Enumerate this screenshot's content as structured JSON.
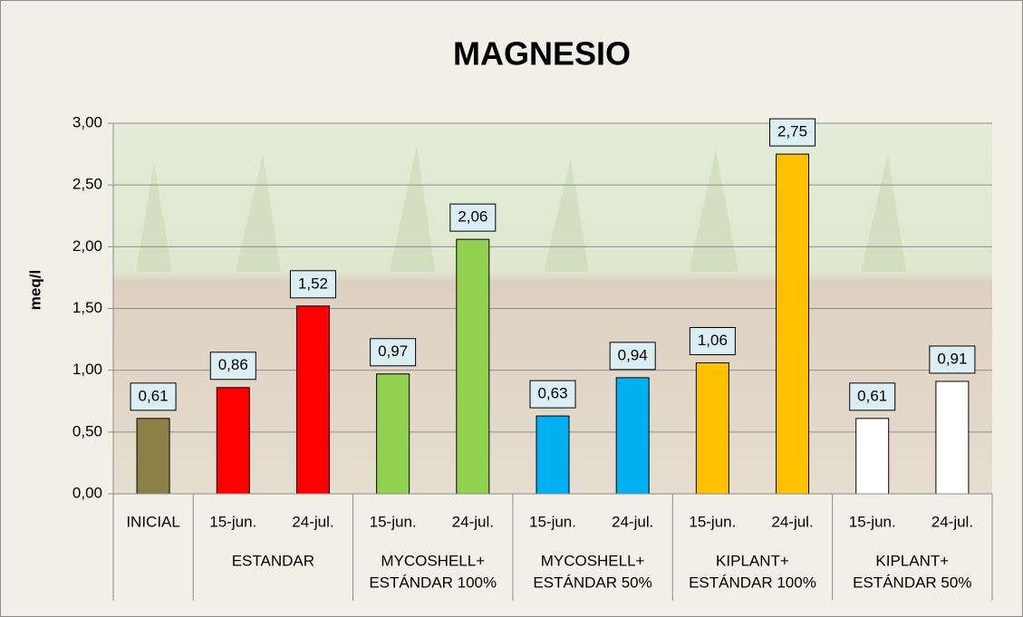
{
  "chart_data": {
    "type": "bar",
    "title": "MAGNESIO",
    "y_label": "meq/l",
    "ylim": [
      0,
      3
    ],
    "grid": true,
    "yticks": [
      {
        "value": 0,
        "label": "0,00"
      },
      {
        "value": 0.5,
        "label": "0,50"
      },
      {
        "value": 1,
        "label": "1,00"
      },
      {
        "value": 1.5,
        "label": "1,50"
      },
      {
        "value": 2,
        "label": "2,00"
      },
      {
        "value": 2.5,
        "label": "2,50"
      },
      {
        "value": 3,
        "label": "3,00"
      }
    ],
    "groups": [
      {
        "categories": [
          "INICIAL"
        ],
        "values": [
          0.61
        ],
        "value_labels": [
          "0,61"
        ],
        "color": "#8c8047"
      },
      {
        "name": [
          "ESTANDAR"
        ],
        "categories": [
          "15-jun.",
          "24-jul."
        ],
        "values": [
          0.86,
          1.52
        ],
        "value_labels": [
          "0,86",
          "1,52"
        ],
        "color": "#ff0000"
      },
      {
        "name": [
          "MYCOSHELL+",
          "ESTÁNDAR 100%"
        ],
        "categories": [
          "15-jun.",
          "24-jul."
        ],
        "values": [
          0.97,
          2.06
        ],
        "value_labels": [
          "0,97",
          "2,06"
        ],
        "color": "#92d050"
      },
      {
        "name": [
          "MYCOSHELL+",
          "ESTÁNDAR 50%"
        ],
        "categories": [
          "15-jun.",
          "24-jul."
        ],
        "values": [
          0.63,
          0.94
        ],
        "value_labels": [
          "0,63",
          "0,94"
        ],
        "color": "#00b0f0"
      },
      {
        "name": [
          "KIPLANT+",
          "ESTÁNDAR 100%"
        ],
        "categories": [
          "15-jun.",
          "24-jul."
        ],
        "values": [
          1.06,
          2.75
        ],
        "value_labels": [
          "1,06",
          "2,75"
        ],
        "color": "#ffc000"
      },
      {
        "name": [
          "KIPLANT+",
          "ESTÁNDAR 50%"
        ],
        "categories": [
          "15-jun.",
          "24-jul."
        ],
        "values": [
          0.61,
          0.91
        ],
        "value_labels": [
          "0,61",
          "0,91"
        ],
        "color": "#ffffff"
      }
    ]
  }
}
